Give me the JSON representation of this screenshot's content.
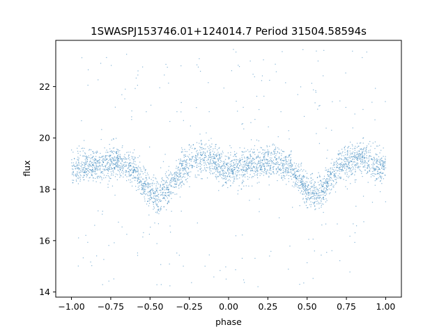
{
  "chart_data": {
    "type": "scatter",
    "title": "1SWASPJ153746.01+124014.7 Period 31504.58594s",
    "xlabel": "phase",
    "ylabel": "flux",
    "xlim": [
      -1.1,
      1.1
    ],
    "ylim": [
      13.8,
      23.8
    ],
    "xticks": [
      {
        "value": -1.0,
        "label": "−1.00"
      },
      {
        "value": -0.75,
        "label": "−0.75"
      },
      {
        "value": -0.5,
        "label": "−0.50"
      },
      {
        "value": -0.25,
        "label": "−0.25"
      },
      {
        "value": 0.0,
        "label": "0.00"
      },
      {
        "value": 0.25,
        "label": "0.25"
      },
      {
        "value": 0.5,
        "label": "0.50"
      },
      {
        "value": 0.75,
        "label": "0.75"
      },
      {
        "value": 1.0,
        "label": "1.00"
      }
    ],
    "yticks": [
      {
        "value": 14,
        "label": "14"
      },
      {
        "value": 16,
        "label": "16"
      },
      {
        "value": 18,
        "label": "18"
      },
      {
        "value": 20,
        "label": "20"
      },
      {
        "value": 22,
        "label": "22"
      }
    ],
    "grid": false,
    "marker_color": "#1f77b4",
    "light_curve": {
      "phase": [
        -1.0,
        -0.9,
        -0.8,
        -0.7,
        -0.6,
        -0.5,
        -0.45,
        -0.4,
        -0.3,
        -0.2,
        -0.15,
        -0.1,
        0.0,
        0.1,
        0.2,
        0.3,
        0.4,
        0.5,
        0.55,
        0.6,
        0.7,
        0.8,
        0.85,
        0.9,
        1.0
      ],
      "flux": [
        18.8,
        18.9,
        19.0,
        19.1,
        18.7,
        17.9,
        17.75,
        17.9,
        18.8,
        19.2,
        19.25,
        19.1,
        18.75,
        18.85,
        19.0,
        19.1,
        18.8,
        18.0,
        17.8,
        17.95,
        18.9,
        19.2,
        19.25,
        19.1,
        18.8
      ]
    },
    "scatter_spread": 0.45,
    "outlier_range": [
      14.2,
      23.5
    ]
  }
}
